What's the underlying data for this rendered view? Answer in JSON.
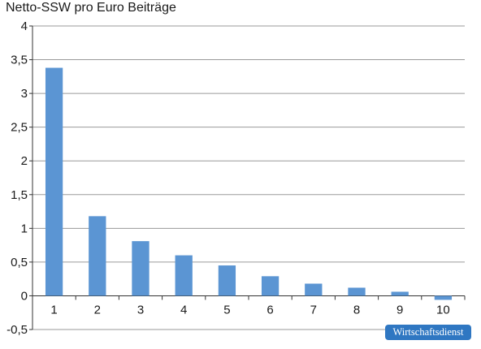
{
  "chart_data": {
    "type": "bar",
    "title": "Netto-SSW pro Euro Beiträge",
    "xlabel": "",
    "ylabel": "",
    "categories": [
      "1",
      "2",
      "3",
      "4",
      "5",
      "6",
      "7",
      "8",
      "9",
      "10"
    ],
    "values": [
      3.38,
      1.18,
      0.81,
      0.6,
      0.45,
      0.29,
      0.18,
      0.12,
      0.06,
      -0.06
    ],
    "ylim": [
      -0.5,
      4
    ],
    "yticks": [
      4,
      3.5,
      3,
      2.5,
      2,
      1.5,
      1,
      0.5,
      0,
      -0.5
    ],
    "ytick_labels": [
      "4",
      "3,5",
      "3",
      "2,5",
      "2",
      "1,5",
      "1",
      "0,5",
      "0",
      "-0,5"
    ],
    "grid": true,
    "colors": {
      "bar": "#5b95d3",
      "grid": "#9a9a9a",
      "axis": "#333333",
      "text": "#1a1a1a"
    }
  },
  "badge": {
    "label": "Wirtschaftsdienst",
    "color": "#2f77c2"
  }
}
